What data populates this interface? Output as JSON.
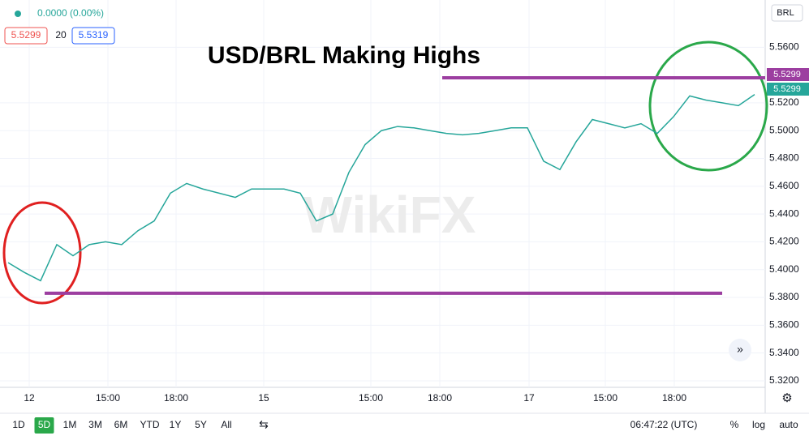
{
  "chart_data": {
    "type": "line",
    "title": "USD/BRL Making Highs",
    "series": [
      {
        "name": "USD/BRL",
        "color": "#26a69a",
        "values": [
          5.405,
          5.398,
          5.392,
          5.418,
          5.41,
          5.418,
          5.42,
          5.418,
          5.428,
          5.435,
          5.455,
          5.462,
          5.458,
          5.455,
          5.452,
          5.458,
          5.458,
          5.458,
          5.455,
          5.435,
          5.44,
          5.47,
          5.49,
          5.5,
          5.503,
          5.502,
          5.5,
          5.498,
          5.497,
          5.498,
          5.5,
          5.502,
          5.502,
          5.478,
          5.472,
          5.492,
          5.508,
          5.505,
          5.502,
          5.505,
          5.498,
          5.51,
          5.525,
          5.522,
          5.52,
          5.518,
          5.526
        ]
      }
    ],
    "xlim": [
      -0.5,
      46.65
    ],
    "xticks": [
      {
        "value": 1.3,
        "label": "12"
      },
      {
        "value": 6.15,
        "label": "15:00"
      },
      {
        "value": 10.35,
        "label": "18:00"
      },
      {
        "value": 15.75,
        "label": "15"
      },
      {
        "value": 22.35,
        "label": "15:00"
      },
      {
        "value": 26.6,
        "label": "18:00"
      },
      {
        "value": 32.1,
        "label": "17"
      },
      {
        "value": 36.8,
        "label": "15:00"
      },
      {
        "value": 41.05,
        "label": "18:00"
      }
    ],
    "ylim": [
      5.3153,
      5.594
    ],
    "yticks": [
      {
        "value": 5.32,
        "label": "5.3200"
      },
      {
        "value": 5.34,
        "label": "5.3400"
      },
      {
        "value": 5.36,
        "label": "5.3600"
      },
      {
        "value": 5.38,
        "label": "5.3800"
      },
      {
        "value": 5.4,
        "label": "5.4000"
      },
      {
        "value": 5.42,
        "label": "5.4200"
      },
      {
        "value": 5.44,
        "label": "5.4400"
      },
      {
        "value": 5.46,
        "label": "5.4600"
      },
      {
        "value": 5.48,
        "label": "5.4800"
      },
      {
        "value": 5.5,
        "label": "5.5000"
      },
      {
        "value": 5.52,
        "label": "5.5200"
      },
      {
        "value": 5.56,
        "label": "5.5600"
      }
    ],
    "levels": [
      5.538,
      5.383
    ],
    "level_color": "#9c3ea0",
    "grid": true
  },
  "ui": {
    "change": "0.0000 (0.00%)",
    "bid": "5.5299",
    "period": "20",
    "ask": "5.5319",
    "currency": "BRL",
    "price_tags": [
      "5.5299",
      "5.5299"
    ],
    "watermark": "WikiFX",
    "ranges": [
      "1D",
      "5D",
      "1M",
      "3M",
      "6M",
      "YTD",
      "1Y",
      "5Y",
      "All"
    ],
    "clock": "06:47:22 (UTC)",
    "percent": "%",
    "log": "log",
    "auto": "auto"
  }
}
